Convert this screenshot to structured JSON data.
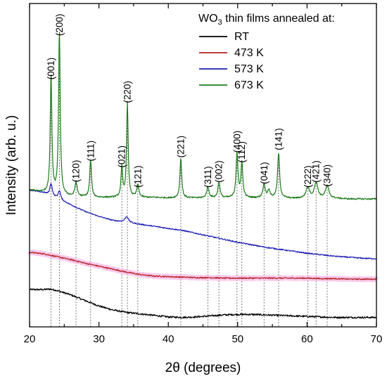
{
  "chart_data": {
    "type": "line",
    "xlabel": "2θ (degrees)",
    "ylabel": "Intensity (arb. u.)",
    "xlim": [
      20,
      70
    ],
    "xticks": [
      20,
      30,
      40,
      50,
      60,
      70
    ],
    "y_ticks_shown": false,
    "legend": {
      "title_prefix": "WO",
      "title_sub": "3",
      "title_suffix": " thin films annealed at:",
      "placement": "top-right"
    },
    "series": [
      {
        "name": "RT",
        "color": "#000000",
        "baseline": 0.15,
        "points": [
          [
            20,
            0.6
          ],
          [
            22,
            0.6
          ],
          [
            23,
            0.61
          ],
          [
            24,
            0.58
          ],
          [
            26,
            0.49
          ],
          [
            28,
            0.38
          ],
          [
            30,
            0.27
          ],
          [
            32,
            0.19
          ],
          [
            34,
            0.14
          ],
          [
            36,
            0.11
          ],
          [
            38,
            0.08
          ],
          [
            40,
            0.05
          ],
          [
            42,
            0.04
          ],
          [
            44,
            0.05
          ],
          [
            46,
            0.07
          ],
          [
            48,
            0.09
          ],
          [
            50,
            0.1
          ],
          [
            52,
            0.1
          ],
          [
            54,
            0.09
          ],
          [
            56,
            0.08
          ],
          [
            58,
            0.07
          ],
          [
            60,
            0.06
          ],
          [
            62,
            0.05
          ],
          [
            64,
            0.04
          ],
          [
            66,
            0.04
          ],
          [
            68,
            0.04
          ],
          [
            70,
            0.04
          ]
        ],
        "peaks": [],
        "noise": 0.018,
        "band_color": "",
        "band_width": 0
      },
      {
        "name": "473 K",
        "color": "#b22222",
        "baseline": 0.95,
        "points": [
          [
            20,
            0.55
          ],
          [
            22,
            0.52
          ],
          [
            24,
            0.46
          ],
          [
            26,
            0.4
          ],
          [
            28,
            0.33
          ],
          [
            30,
            0.27
          ],
          [
            32,
            0.21
          ],
          [
            34,
            0.15
          ],
          [
            36,
            0.1
          ],
          [
            38,
            0.07
          ],
          [
            40,
            0.06
          ],
          [
            42,
            0.05
          ],
          [
            44,
            0.04
          ],
          [
            46,
            0.04
          ],
          [
            48,
            0.03
          ],
          [
            50,
            0.03
          ],
          [
            52,
            0.03
          ],
          [
            54,
            0.03
          ],
          [
            56,
            0.03
          ],
          [
            58,
            0.03
          ],
          [
            60,
            0.03
          ],
          [
            62,
            0.02
          ],
          [
            64,
            0.02
          ],
          [
            66,
            0.01
          ],
          [
            68,
            0.01
          ],
          [
            70,
            0.01
          ]
        ],
        "peaks": [],
        "noise": 0.012,
        "band_color": "#f7b7e6",
        "band_width": 7
      },
      {
        "name": "573 K",
        "color": "#1f1fb4",
        "baseline": 1.3,
        "points": [
          [
            20,
            1.45
          ],
          [
            22,
            1.4
          ],
          [
            24,
            1.28
          ],
          [
            26,
            1.15
          ],
          [
            28,
            1.02
          ],
          [
            30,
            0.92
          ],
          [
            32,
            0.84
          ],
          [
            34,
            0.8
          ],
          [
            36,
            0.76
          ],
          [
            38,
            0.72
          ],
          [
            40,
            0.68
          ],
          [
            42,
            0.64
          ],
          [
            44,
            0.58
          ],
          [
            46,
            0.52
          ],
          [
            48,
            0.46
          ],
          [
            50,
            0.4
          ],
          [
            52,
            0.35
          ],
          [
            54,
            0.3
          ],
          [
            56,
            0.26
          ],
          [
            58,
            0.22
          ],
          [
            60,
            0.18
          ],
          [
            62,
            0.15
          ],
          [
            64,
            0.12
          ],
          [
            66,
            0.1
          ],
          [
            68,
            0.08
          ],
          [
            70,
            0.07
          ]
        ],
        "peaks": [
          [
            23.1,
            0.25,
            0.2
          ],
          [
            24.3,
            0.18,
            0.2
          ],
          [
            34.0,
            0.12,
            0.3
          ]
        ],
        "noise": 0.012,
        "band_color": "",
        "band_width": 0
      },
      {
        "name": "673 K",
        "color": "#1e7b1e",
        "baseline": 2.55,
        "points": [
          [
            20,
            0.2
          ],
          [
            22,
            0.15
          ],
          [
            24,
            0.1
          ],
          [
            26,
            0.07
          ],
          [
            28,
            0.06
          ],
          [
            30,
            0.05
          ],
          [
            32,
            0.05
          ],
          [
            34,
            0.05
          ],
          [
            36,
            0.05
          ],
          [
            38,
            0.05
          ],
          [
            40,
            0.04
          ],
          [
            42,
            0.04
          ],
          [
            44,
            0.04
          ],
          [
            46,
            0.04
          ],
          [
            48,
            0.04
          ],
          [
            50,
            0.04
          ],
          [
            52,
            0.04
          ],
          [
            54,
            0.04
          ],
          [
            56,
            0.04
          ],
          [
            58,
            0.03
          ],
          [
            60,
            0.03
          ],
          [
            62,
            0.03
          ],
          [
            64,
            0.03
          ],
          [
            66,
            0.02
          ],
          [
            68,
            0.02
          ],
          [
            70,
            0.02
          ]
        ],
        "peaks": [
          [
            23.1,
            2.4,
            0.14
          ],
          [
            24.3,
            3.3,
            0.14
          ],
          [
            26.7,
            0.3,
            0.18
          ],
          [
            28.8,
            0.75,
            0.15
          ],
          [
            33.3,
            0.6,
            0.14
          ],
          [
            34.1,
            1.9,
            0.14
          ],
          [
            35.6,
            0.25,
            0.18
          ],
          [
            41.8,
            0.8,
            0.15
          ],
          [
            45.7,
            0.22,
            0.2
          ],
          [
            47.3,
            0.32,
            0.18
          ],
          [
            49.9,
            0.9,
            0.16
          ],
          [
            50.6,
            0.7,
            0.16
          ],
          [
            53.8,
            0.28,
            0.2
          ],
          [
            54.5,
            0.15,
            0.2
          ],
          [
            55.9,
            0.9,
            0.17
          ],
          [
            60.1,
            0.22,
            0.3
          ],
          [
            61.3,
            0.32,
            0.3
          ],
          [
            62.9,
            0.25,
            0.3
          ]
        ],
        "noise": 0.015,
        "band_color": "",
        "band_width": 0
      }
    ],
    "ylim": [
      0,
      6.5
    ],
    "peak_labels": [
      {
        "text": "(001)",
        "x": 23.1,
        "y": 4.97,
        "line_top": 4.95
      },
      {
        "text": "(200)",
        "x": 24.3,
        "y": 5.85,
        "line_top": 5.85
      },
      {
        "text": "(120)",
        "x": 26.7,
        "y": 2.91,
        "line_top": 2.88
      },
      {
        "text": "(111)",
        "x": 28.8,
        "y": 3.33,
        "line_top": 3.31
      },
      {
        "text": "(021)",
        "x": 33.3,
        "y": 3.2,
        "line_top": 3.15
      },
      {
        "text": "(220)",
        "x": 34.1,
        "y": 4.5,
        "line_top": 4.45
      },
      {
        "text": "(121)",
        "x": 35.6,
        "y": 2.8,
        "line_top": 2.85
      },
      {
        "text": "(221)",
        "x": 41.8,
        "y": 3.4,
        "line_top": 3.39
      },
      {
        "text": "(311)",
        "x": 45.7,
        "y": 2.8,
        "line_top": 2.81
      },
      {
        "text": "(002)",
        "x": 47.3,
        "y": 2.9,
        "line_top": 2.91
      },
      {
        "text": "(400)",
        "x": 49.9,
        "y": 3.5,
        "line_top": 3.49
      },
      {
        "text": "(112)",
        "x": 50.6,
        "y": 3.3,
        "line_top": 3.29
      },
      {
        "text": "(041)",
        "x": 53.8,
        "y": 2.87,
        "line_top": 2.87
      },
      {
        "text": "(141)",
        "x": 55.9,
        "y": 3.55,
        "line_top": 3.49
      },
      {
        "text": "(222)",
        "x": 60.1,
        "y": 2.8,
        "line_top": 2.8
      },
      {
        "text": "(421)",
        "x": 61.3,
        "y": 2.9,
        "line_top": 2.9
      },
      {
        "text": "(340)",
        "x": 62.9,
        "y": 2.82,
        "line_top": 2.82
      }
    ]
  }
}
